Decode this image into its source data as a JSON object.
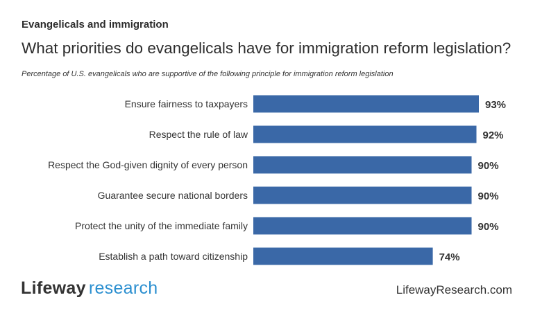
{
  "header": {
    "kicker": "Evangelicals and immigration",
    "title": "What priorities do evangelicals have for immigration reform legislation?",
    "subtitle": "Percentage of U.S. evangelicals who are supportive of the following principle for immigration reform legislation"
  },
  "footer": {
    "logo_part1": "Lifeway",
    "logo_part2": "research",
    "site": "LifewayResearch.com"
  },
  "colors": {
    "bar": "#3a68a7",
    "label": "#333333"
  },
  "chart_data": {
    "type": "bar",
    "orientation": "horizontal",
    "title": "What priorities do evangelicals have for immigration reform legislation?",
    "categories": [
      "Ensure fairness to taxpayers",
      "Respect the rule of law",
      "Respect the God-given dignity of every person",
      "Guarantee secure national borders",
      "Protect the unity of the immediate family",
      "Establish a path toward citizenship"
    ],
    "values": [
      93,
      92,
      90,
      90,
      90,
      74
    ],
    "value_labels": [
      "93%",
      "92%",
      "90%",
      "90%",
      "90%",
      "74%"
    ],
    "xlabel": "",
    "ylabel": "",
    "xlim": [
      0,
      100
    ],
    "grid": false
  }
}
